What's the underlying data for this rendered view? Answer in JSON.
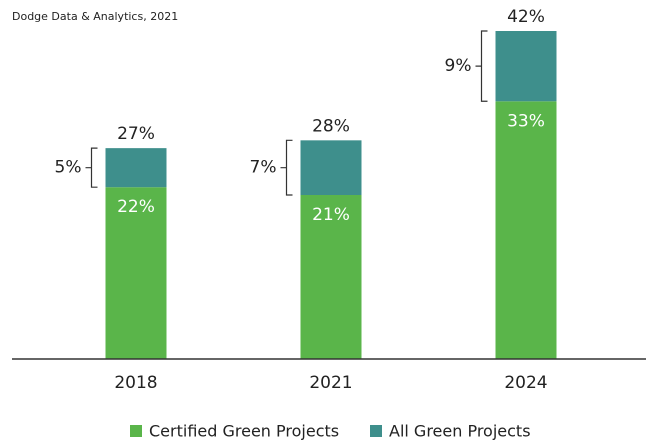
{
  "chart_data": {
    "type": "stacked_bar",
    "subtitle": "Dodge Data & Analytics, 2021",
    "categories": [
      "2018",
      "2021",
      "2024"
    ],
    "series": [
      {
        "name": "Certified Green Projects",
        "color": "#5ab54a",
        "values": [
          22,
          21,
          33
        ],
        "value_labels": [
          "22%",
          "21%",
          "33%"
        ]
      },
      {
        "name": "All Green Projects",
        "color": "#3e8f8c",
        "values": [
          5,
          7,
          9
        ],
        "value_labels": [
          "5%",
          "7%",
          "9%"
        ]
      }
    ],
    "total_labels": [
      "27%",
      "28%",
      "42%"
    ],
    "ylim": [
      0,
      42
    ],
    "grid": false
  }
}
